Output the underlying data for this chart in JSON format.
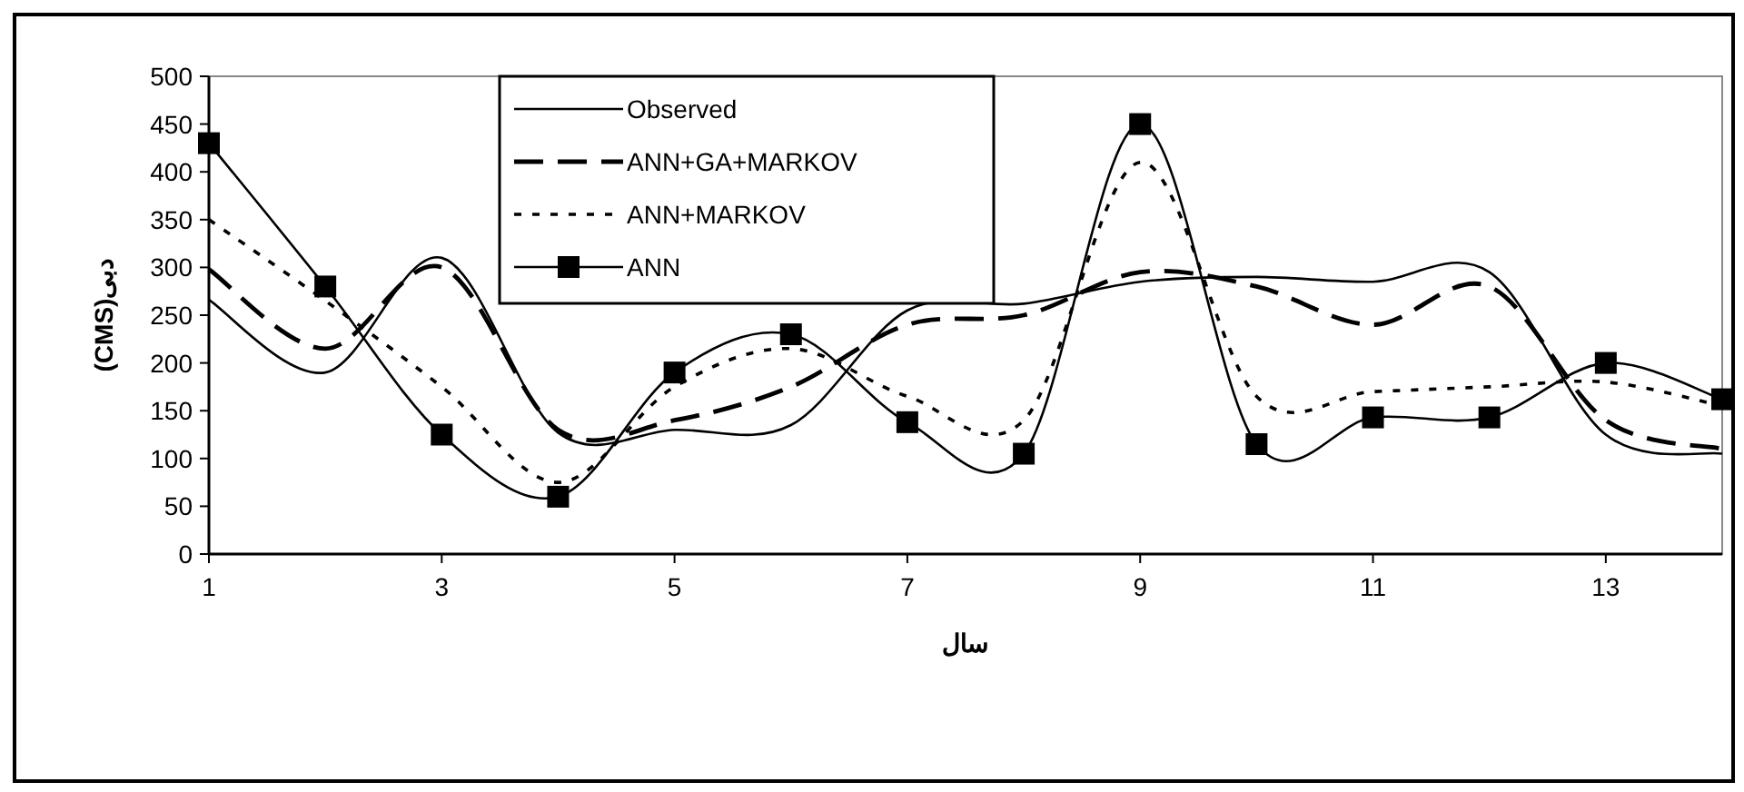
{
  "chart_data": {
    "type": "line",
    "xlabel": "سال",
    "ylabel": "دبی(CMS)",
    "x": [
      1,
      2,
      3,
      4,
      5,
      6,
      7,
      8,
      9,
      10,
      11,
      12,
      13,
      14
    ],
    "xlim": [
      1,
      14
    ],
    "xticks": [
      1,
      3,
      5,
      7,
      9,
      11,
      13
    ],
    "ylim": [
      0,
      500
    ],
    "yticks": [
      0,
      50,
      100,
      150,
      200,
      250,
      300,
      350,
      400,
      450,
      500
    ],
    "legend": "top",
    "series": [
      {
        "name": "Observed",
        "color": "#000000",
        "line_style": "solid",
        "marker": "none",
        "values": [
          266,
          190,
          310,
          127,
          130,
          135,
          255,
          262,
          285,
          290,
          285,
          295,
          125,
          105
        ]
      },
      {
        "name": "ANN+GA+MARKOV",
        "color": "#000000",
        "line_style": "dashed",
        "marker": "none",
        "values": [
          298,
          215,
          300,
          130,
          140,
          175,
          240,
          250,
          295,
          280,
          240,
          280,
          140,
          110
        ]
      },
      {
        "name": "ANN+MARKOV",
        "color": "#000000",
        "line_style": "dotted",
        "marker": "none",
        "values": [
          350,
          265,
          175,
          75,
          175,
          215,
          165,
          140,
          410,
          165,
          170,
          175,
          180,
          155
        ]
      },
      {
        "name": "ANN",
        "color": "#000000",
        "line_style": "solid",
        "marker": "square",
        "values": [
          430,
          280,
          125,
          60,
          190,
          230,
          138,
          105,
          450,
          115,
          143,
          143,
          200,
          162
        ]
      }
    ]
  }
}
